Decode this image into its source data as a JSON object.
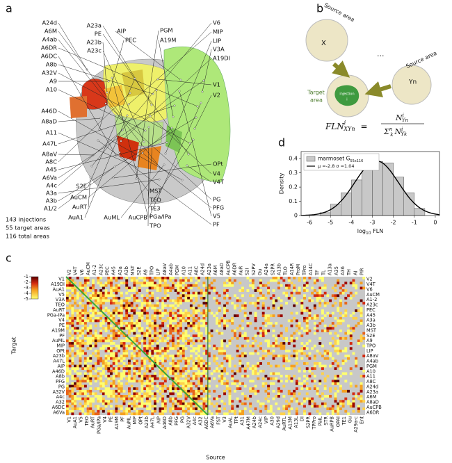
{
  "panel_labels": [
    "a",
    "b",
    "c",
    "d"
  ],
  "panel_a": {
    "labels": [
      "A24d",
      "A6M",
      "A4ab",
      "A6DR",
      "A6DC",
      "A8b",
      "A32V",
      "A9",
      "A10",
      "A46D",
      "A8aD",
      "A11",
      "A47L",
      "A8aV",
      "A8C",
      "A45",
      "A6Va",
      "A4c",
      "A3a",
      "A3b",
      "A1/2",
      "A23a",
      "PE",
      "A23b",
      "A23c",
      "AIP",
      "PEC",
      "PGM",
      "A19M",
      "V6",
      "MIP",
      "LIP",
      "V3A",
      "A19DI",
      "V1",
      "V2",
      "OPt",
      "V4",
      "V4T",
      "PG",
      "PFG",
      "V5",
      "PF",
      "S2E",
      "AuCM",
      "AuRT",
      "AuA1",
      "AuML",
      "AuCPB",
      "MST",
      "TEO",
      "TE3",
      "PGa/IPa",
      "TPO"
    ],
    "stats": [
      "143 injections",
      "55 target areas",
      "116 total areas"
    ]
  },
  "panel_b": {
    "source_x": "Source area",
    "x_label": "X",
    "target": [
      "Target",
      "area"
    ],
    "injection": "injection",
    "injection_index": "i",
    "source_y": "Source area",
    "y_label": "Yn",
    "ellipsis": "...",
    "formula": {
      "lhs": "FLN",
      "lhs_sup": "i",
      "lhs_sub": "XYn",
      "eq": "=",
      "num": "N",
      "num_sup": "i",
      "num_sub": "Yn",
      "sum": "Σ",
      "sum_sup": "n",
      "sum_sub": "k",
      "den": "N",
      "den_sup": "i",
      "den_sub": "Yk"
    }
  },
  "chart_data": {
    "type": "histogram",
    "bins": [
      -5.5,
      -5,
      -4.5,
      -4,
      -3.5,
      -3,
      -2.5,
      -2,
      -1.5,
      -1,
      -0.5
    ],
    "values": [
      0.02,
      0.08,
      0.16,
      0.25,
      0.35,
      0.38,
      0.37,
      0.27,
      0.16,
      0.05
    ],
    "color": "#c8c8c8",
    "xlim": [
      -6.4,
      0.2
    ],
    "xticks": [
      -6,
      -5,
      -4,
      -3,
      -2,
      -1,
      0
    ],
    "ylim": [
      0,
      0.45
    ],
    "yticks": [
      0,
      0.1,
      0.2,
      0.3,
      0.4
    ],
    "y_label": "Density",
    "x_label": {
      "main": "log",
      "sub": "10",
      "tail": " FLN"
    },
    "legend": {
      "hist": "marmoset G",
      "hist_sub": "55x116",
      "fit": "μ =-2.8  σ =1.04"
    },
    "mu": -2.8,
    "sigma": 1.04,
    "fit_color": "#000000"
  },
  "panel_c": {
    "y_label": "Target",
    "x_label": "Source",
    "colorbar_ticks": [
      -1,
      -2,
      -3,
      -4,
      -5
    ],
    "colorbar_lim": [
      -5,
      -1
    ],
    "left_labels": [
      "V1",
      "A19DI",
      "AuA1",
      "V5",
      "V3A",
      "TEO",
      "AuRT",
      "PGa-IPa",
      "V4",
      "PE",
      "A19M",
      "PF",
      "AuML",
      "MIP",
      "OPt",
      "A23b",
      "A47L",
      "AIP",
      "A46D",
      "A8b",
      "PFG",
      "PG",
      "A32V",
      "A4c",
      "A32",
      "A6DC",
      "A6Va"
    ],
    "right_labels": [
      "V2",
      "V4T",
      "V6",
      "AuCM",
      "A1-2",
      "A23c",
      "PEC",
      "A45",
      "A3a",
      "A3b",
      "MST",
      "S2E",
      "A9",
      "TPO",
      "LIP",
      "A8aV",
      "A4ab",
      "PGM",
      "A10",
      "A11",
      "A8C",
      "A24d",
      "A23a",
      "A6M",
      "A8aD",
      "AuCPB",
      "A6DR"
    ],
    "top_labels": [
      "V2",
      "V4T",
      "V6",
      "AuCM",
      "A1-2",
      "A23c",
      "PEC",
      "A45",
      "A3a",
      "A3b",
      "MST",
      "S2E",
      "A9",
      "TPO",
      "LIP",
      "A8aV",
      "A4ab",
      "PGM",
      "A10",
      "A11",
      "A8C",
      "A24d",
      "A23a",
      "A6M",
      "A8aD",
      "AuCPB",
      "A6DR",
      "AuR",
      "S2I",
      "S2PV",
      "Gu",
      "A24a",
      "S2PR",
      "A13b",
      "TLO",
      "A14R",
      "ProM",
      "TPro",
      "A14C",
      "TF",
      "TL",
      "A13a",
      "A35",
      "A36",
      "TH",
      "AI",
      "PIR"
    ],
    "bottom_labels": [
      "V1",
      "AuA1",
      "V5",
      "TEO",
      "AuRT",
      "PGa/IPa",
      "V4",
      "PE",
      "A19M",
      "PF",
      "AuML",
      "MIP",
      "OPt",
      "A23b",
      "A47L",
      "AIP",
      "A46D",
      "A8b",
      "PFG",
      "PG",
      "A32V",
      "A4c",
      "A32",
      "A6DC",
      "A6Va",
      "FST",
      "V3",
      "AuAL",
      "TPt",
      "A31",
      "A47M",
      "A24b",
      "A24c",
      "VIP",
      "A30",
      "A29d",
      "AuRTL",
      "A13M",
      "A13L",
      "DI",
      "S2PR",
      "TPPro",
      "PaIL",
      "STR",
      "AuRPB",
      "OPAI",
      "TE1",
      "Gu",
      "A29a-c",
      "Ent"
    ]
  }
}
